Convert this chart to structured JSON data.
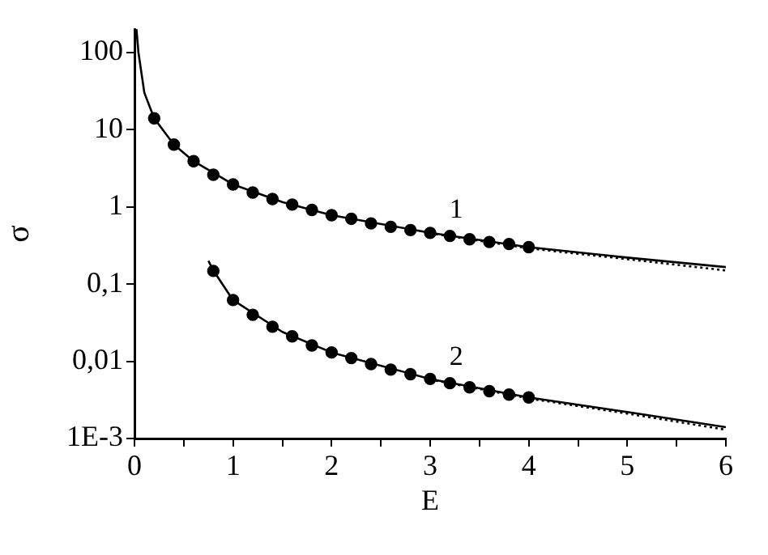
{
  "chart_data": {
    "type": "line",
    "xlabel": "E",
    "ylabel": "σ",
    "log": "y",
    "grid": false,
    "legend": false,
    "xlim": [
      0,
      6
    ],
    "ylim": [
      0.001,
      200
    ],
    "xticks": [
      0,
      {
        "value": 0.5,
        "label": null
      },
      1,
      {
        "value": 1.5,
        "label": null
      },
      2,
      {
        "value": 2.5,
        "label": null
      },
      3,
      {
        "value": 3.5,
        "label": null
      },
      4,
      {
        "value": 4.5,
        "label": null
      },
      5,
      {
        "value": 5.5,
        "label": null
      },
      6
    ],
    "yticks": [
      {
        "value": 0.001,
        "label": "1E-3"
      },
      {
        "value": 0.01,
        "label": "0,01"
      },
      {
        "value": 0.1,
        "label": "0,1"
      },
      1,
      10,
      100
    ],
    "series": [
      {
        "color": "#000000",
        "marker": "none",
        "line_style": "solid",
        "x": [
          0.02,
          0.04,
          0.1,
          0.2,
          0.4,
          0.6,
          1,
          1.5,
          2,
          3,
          4,
          5,
          6
        ],
        "values": [
          200,
          100,
          30,
          14,
          6.4,
          3.9,
          1.95,
          1.15,
          0.78,
          0.46,
          0.3,
          0.22,
          0.166
        ]
      },
      {
        "color": "#000000",
        "marker": "none",
        "line_style": "dotted",
        "x": [
          3,
          4,
          5,
          6
        ],
        "values": [
          0.455,
          0.29,
          0.21,
          0.15
        ]
      },
      {
        "type": "scatter",
        "name": "1",
        "color": "#000000",
        "marker": "circle",
        "x": [
          0.2,
          0.4,
          0.6,
          0.8,
          1,
          1.2,
          1.4,
          1.6,
          1.8,
          2,
          2.2,
          2.4,
          2.6,
          2.8,
          3,
          3.2,
          3.4,
          3.6,
          3.8,
          4
        ],
        "values": [
          14,
          6.4,
          3.9,
          2.6,
          1.95,
          1.53,
          1.26,
          1.07,
          0.91,
          0.78,
          0.7,
          0.61,
          0.55,
          0.5,
          0.46,
          0.42,
          0.38,
          0.35,
          0.33,
          0.3
        ]
      },
      {
        "color": "#000000",
        "marker": "none",
        "line_style": "solid",
        "x": [
          0.75,
          0.8,
          1,
          1.5,
          2,
          3,
          4,
          5,
          6
        ],
        "values": [
          0.2,
          0.15,
          0.062,
          0.024,
          0.013,
          0.0059,
          0.0034,
          0.0022,
          0.0014
        ]
      },
      {
        "color": "#000000",
        "marker": "none",
        "line_style": "dotted",
        "x": [
          3,
          4,
          5,
          6
        ],
        "values": [
          0.0058,
          0.0033,
          0.0021,
          0.0013
        ]
      },
      {
        "type": "scatter",
        "name": "2",
        "color": "#000000",
        "marker": "circle",
        "x": [
          0.8,
          1,
          1.2,
          1.4,
          1.6,
          1.8,
          2,
          2.2,
          2.4,
          2.6,
          2.8,
          3,
          3.2,
          3.4,
          3.6,
          3.8,
          4
        ],
        "values": [
          0.148,
          0.062,
          0.04,
          0.028,
          0.021,
          0.016,
          0.013,
          0.011,
          0.0092,
          0.0078,
          0.0068,
          0.0059,
          0.0052,
          0.0046,
          0.0041,
          0.0037,
          0.0034
        ]
      }
    ]
  }
}
